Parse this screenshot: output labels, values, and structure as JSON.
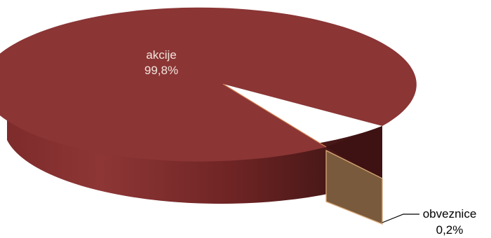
{
  "chart_data": {
    "type": "pie",
    "style": "3d-exploded",
    "slices": [
      {
        "label": "akcije",
        "value": 99.8,
        "value_label": "99,8%",
        "color": "#8B3535"
      },
      {
        "label": "obveznice",
        "value": 0.2,
        "value_label": "0,2%",
        "color": "#7A5A3C"
      }
    ],
    "label_colors": {
      "inside": "#F3E4DB",
      "outside": "#000000"
    }
  }
}
